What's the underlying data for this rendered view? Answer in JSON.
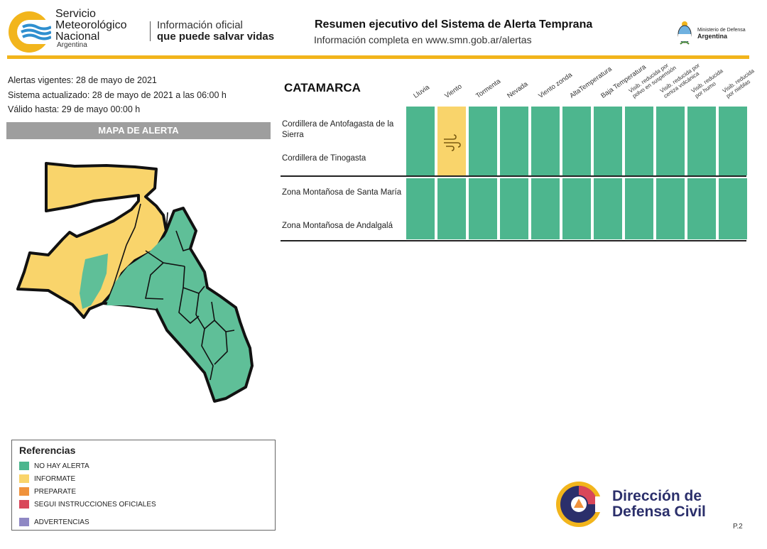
{
  "header": {
    "org_name_lines": [
      "Servicio",
      "Meteorológico",
      "Nacional"
    ],
    "org_country": "Argentina",
    "tagline_line1": "Información oficial",
    "tagline_line2": "que puede salvar vidas",
    "summary_title": "Resumen ejecutivo del Sistema de Alerta Temprana",
    "summary_subtitle": "Información completa en www.smn.gob.ar/alertas",
    "ministry_line1": "Ministerio de Defensa",
    "ministry_line2": "Argentina",
    "accent_color": "#f2b51c"
  },
  "info": {
    "alertas_vigentes": "Alertas vigentes: 28 de mayo de 2021",
    "sistema_actualizado": "Sistema actualizado: 28 de mayo de 2021 a las 06:00 h",
    "valido_hasta": "Válido hasta: 29 de mayo 00:00 h",
    "map_title": "MAPA DE ALERTA"
  },
  "references": {
    "title": "Referencias",
    "items": [
      {
        "label": "NO HAY ALERTA",
        "color": "#4db68e"
      },
      {
        "label": "INFORMATE",
        "color": "#f9d46b"
      },
      {
        "label": "PREPARATE",
        "color": "#f0923c"
      },
      {
        "label": "SEGUI INSTRUCCIONES OFICIALES",
        "color": "#d9475a"
      },
      {
        "label": "ADVERTENCIAS",
        "color": "#8f88c4"
      }
    ]
  },
  "table": {
    "province": "CATAMARCA",
    "columns": [
      "Lluvia",
      "Viento",
      "Tormenta",
      "Nevada",
      "Viento zonda",
      "AltaTemperatura",
      "Baja Temperatura",
      "Visib. reducida por|polvo en suspensión",
      "Visib. reducida por|ceniza volcánica",
      "Visib. reducida|por humo",
      "Visib. reducida|por nieblas"
    ],
    "groups": [
      {
        "zones": [
          "Cordillera de Antofagasta de la Sierra",
          "Cordillera de Tinogasta"
        ],
        "levels": [
          "none",
          "informate",
          "none",
          "none",
          "none",
          "none",
          "none",
          "none",
          "none",
          "none",
          "none"
        ]
      },
      {
        "zones": [
          "Zona Montañosa de Santa María",
          "Zona Montañosa de Andalgalá"
        ],
        "levels": [
          "none",
          "none",
          "none",
          "none",
          "none",
          "none",
          "none",
          "none",
          "none",
          "none",
          "none"
        ]
      }
    ],
    "level_colors": {
      "none": "#4db68e",
      "informate": "#f9d46b"
    },
    "wind_icon": "wind-icon"
  },
  "footer": {
    "dc_line1": "Dirección de",
    "dc_line2": "Defensa Civil",
    "page": "P.2"
  }
}
